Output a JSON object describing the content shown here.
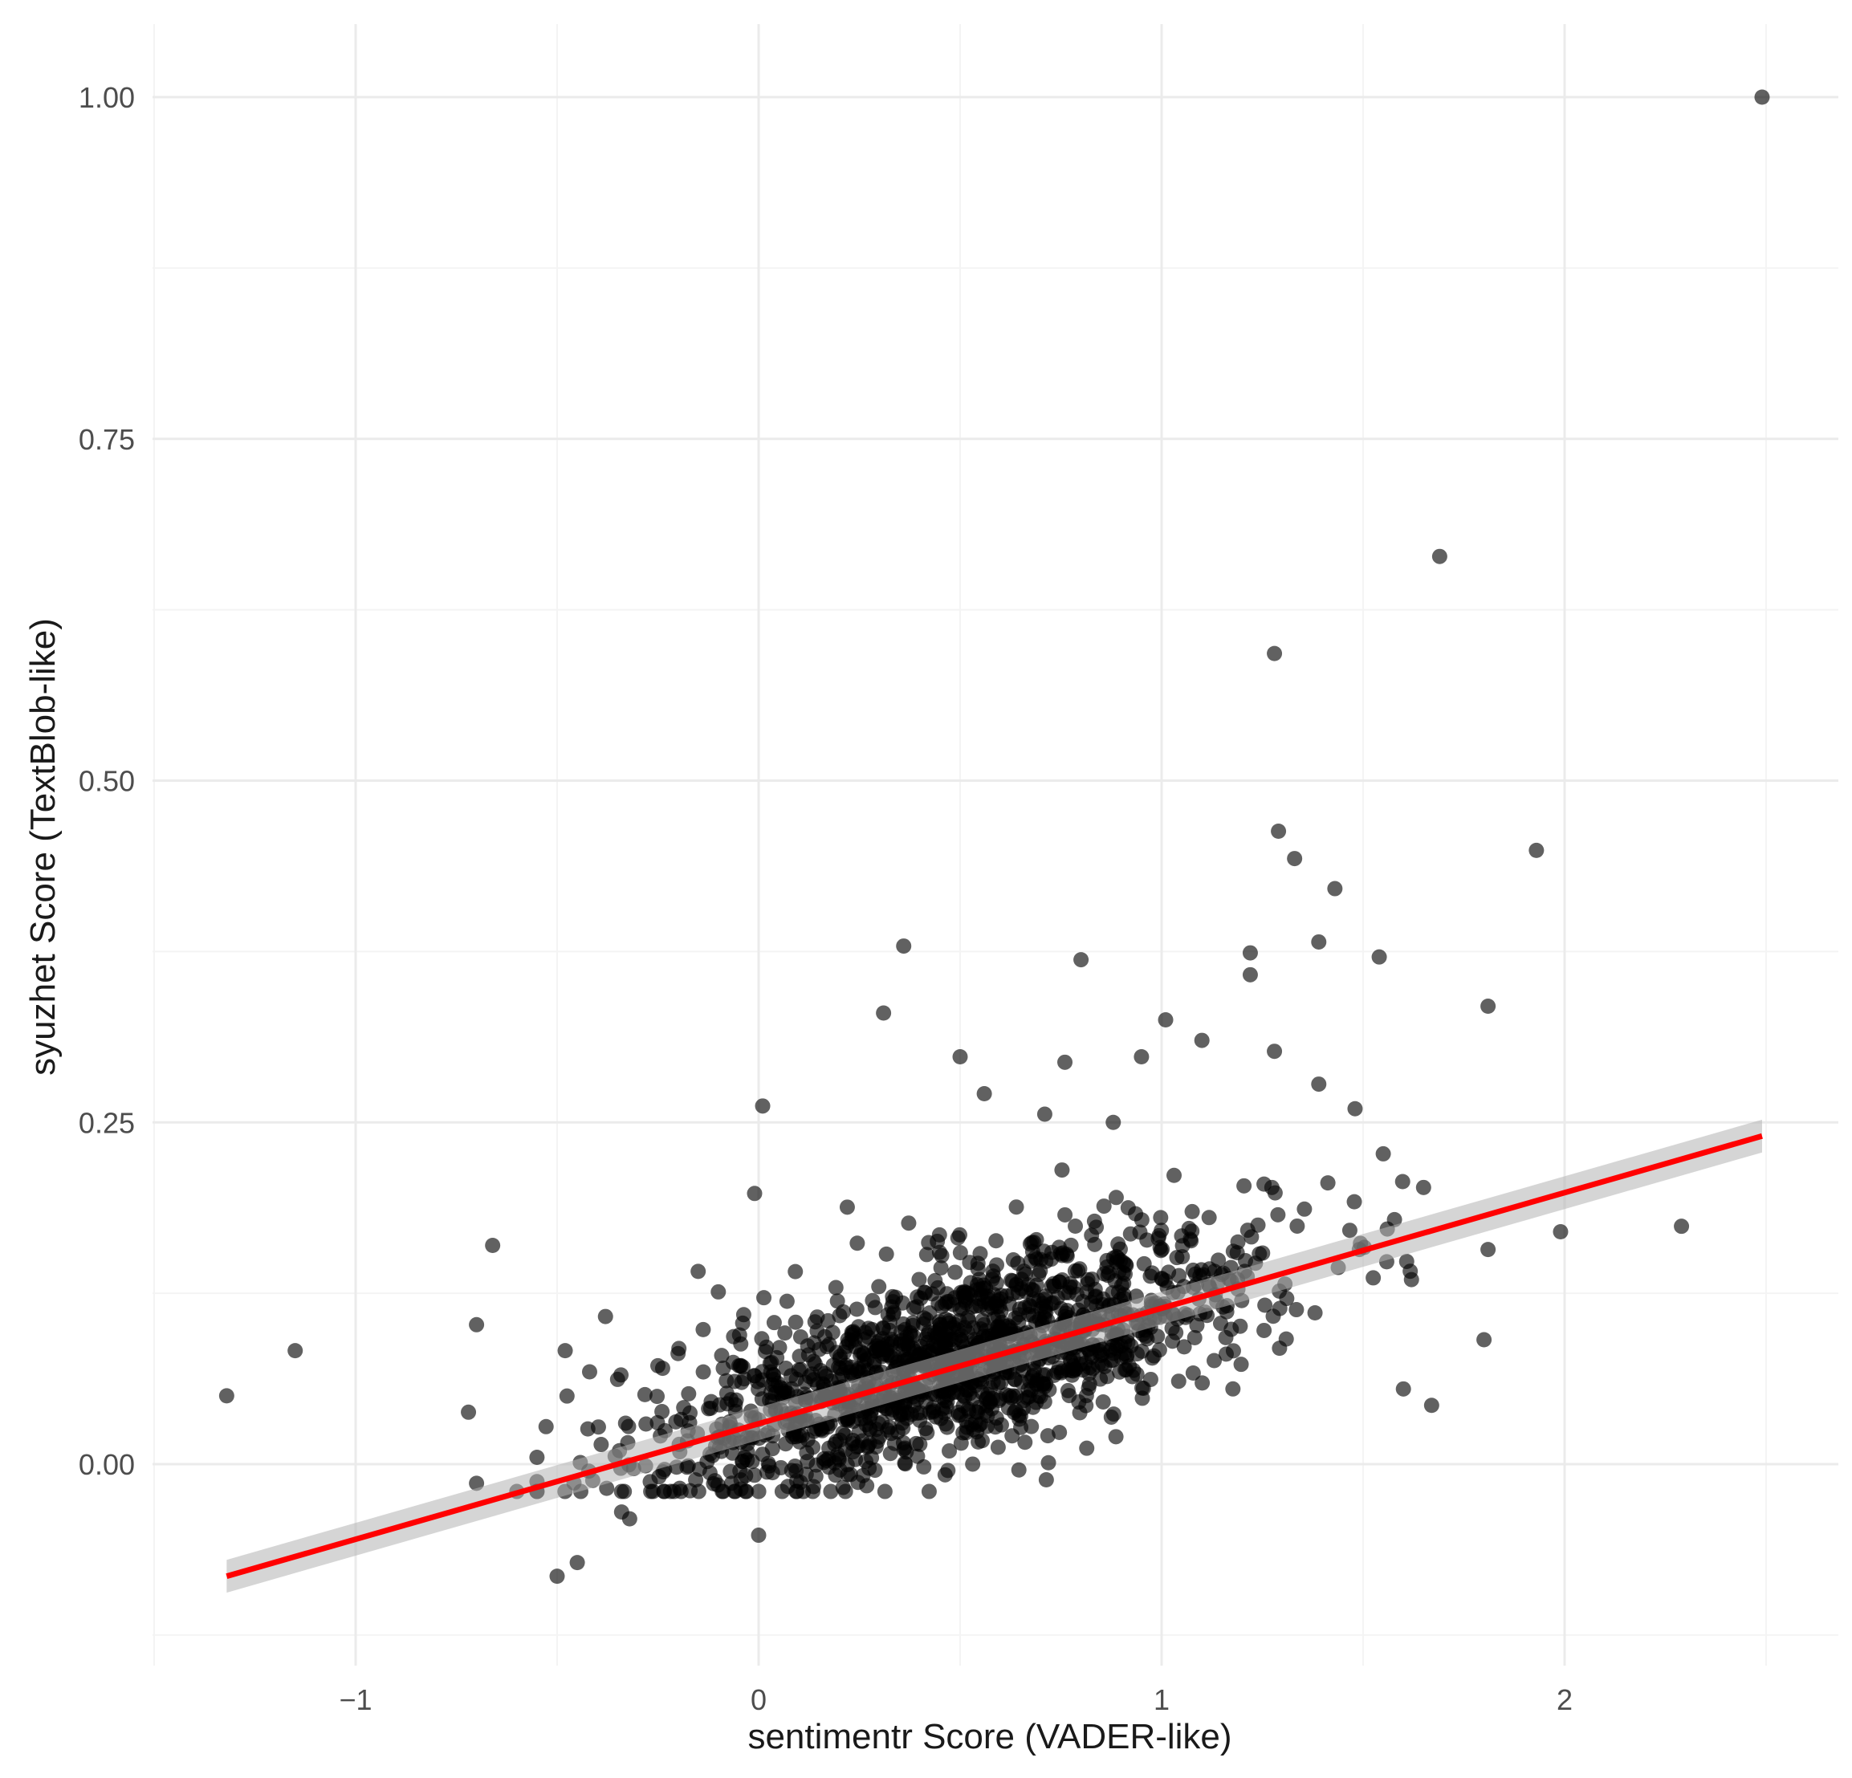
{
  "chart_data": {
    "type": "scatter",
    "xlabel": "sentimentr Score (VADER-like)",
    "ylabel": "syuzhet Score (TextBlob-like)",
    "xlim": [
      -1.5,
      2.7
    ],
    "ylim": [
      -0.13,
      1.05
    ],
    "x_ticks": [
      -1,
      0,
      1,
      2
    ],
    "x_tick_labels": [
      "−1",
      "0",
      "1",
      "2"
    ],
    "y_ticks": [
      0.0,
      0.25,
      0.5,
      0.75,
      1.0
    ],
    "y_tick_labels": [
      "0.00",
      "0.25",
      "0.50",
      "0.75",
      "1.00"
    ],
    "grid": true,
    "point_color": "#000000",
    "fit_color": "#ff0000",
    "band_color": "#b3b3b3",
    "fit_line": {
      "method": "linear regression",
      "x": [
        -1.32,
        2.49
      ],
      "y": [
        -0.082,
        0.24
      ],
      "band_halfwidth": [
        0.012,
        0.012
      ]
    },
    "cluster": {
      "n": 1500,
      "x_mean": 0.5,
      "x_sd": 0.38,
      "intercept": 0.035,
      "slope": 0.085,
      "resid_sd": 0.035
    },
    "points": [
      {
        "x": 2.49,
        "y": 1.0
      },
      {
        "x": 1.69,
        "y": 0.664
      },
      {
        "x": 1.28,
        "y": 0.593
      },
      {
        "x": 1.29,
        "y": 0.463
      },
      {
        "x": 1.33,
        "y": 0.443
      },
      {
        "x": 1.43,
        "y": 0.421
      },
      {
        "x": 1.93,
        "y": 0.449
      },
      {
        "x": 0.36,
        "y": 0.379
      },
      {
        "x": 0.8,
        "y": 0.369
      },
      {
        "x": 1.22,
        "y": 0.374
      },
      {
        "x": 1.22,
        "y": 0.358
      },
      {
        "x": 1.39,
        "y": 0.382
      },
      {
        "x": 1.54,
        "y": 0.371
      },
      {
        "x": 1.81,
        "y": 0.335
      },
      {
        "x": 0.31,
        "y": 0.33
      },
      {
        "x": 1.01,
        "y": 0.325
      },
      {
        "x": 0.5,
        "y": 0.298
      },
      {
        "x": 0.76,
        "y": 0.294
      },
      {
        "x": 0.95,
        "y": 0.298
      },
      {
        "x": 1.1,
        "y": 0.31
      },
      {
        "x": 1.28,
        "y": 0.302
      },
      {
        "x": 0.01,
        "y": 0.262
      },
      {
        "x": 0.56,
        "y": 0.271
      },
      {
        "x": 0.71,
        "y": 0.256
      },
      {
        "x": 0.88,
        "y": 0.25
      },
      {
        "x": 1.39,
        "y": 0.278
      },
      {
        "x": 1.48,
        "y": 0.26
      },
      {
        "x": 1.55,
        "y": 0.227
      },
      {
        "x": -0.01,
        "y": 0.198
      },
      {
        "x": 0.22,
        "y": 0.188
      },
      {
        "x": 1.99,
        "y": 0.17
      },
      {
        "x": 2.29,
        "y": 0.174
      },
      {
        "x": 1.81,
        "y": 0.157
      },
      {
        "x": -0.66,
        "y": 0.16
      },
      {
        "x": -0.7,
        "y": 0.102
      },
      {
        "x": -1.15,
        "y": 0.083
      },
      {
        "x": -1.32,
        "y": 0.05
      },
      {
        "x": -0.72,
        "y": 0.038
      },
      {
        "x": -0.7,
        "y": -0.014
      },
      {
        "x": -0.5,
        "y": -0.082
      },
      {
        "x": -0.45,
        "y": -0.072
      },
      {
        "x": 0.0,
        "y": -0.052
      },
      {
        "x": -0.48,
        "y": 0.083
      },
      {
        "x": -0.38,
        "y": 0.108
      },
      {
        "x": -0.15,
        "y": 0.141
      },
      {
        "x": -0.1,
        "y": 0.126
      },
      {
        "x": 1.8,
        "y": 0.091
      },
      {
        "x": 1.67,
        "y": 0.043
      },
      {
        "x": 1.62,
        "y": 0.135
      },
      {
        "x": 1.6,
        "y": 0.055
      },
      {
        "x": 1.56,
        "y": 0.172
      },
      {
        "x": -0.35,
        "y": 0.062
      },
      {
        "x": -0.55,
        "y": 0.005
      },
      {
        "x": -0.6,
        "y": -0.02
      },
      {
        "x": -0.34,
        "y": -0.035
      },
      {
        "x": -0.32,
        "y": -0.04
      },
      {
        "x": -0.25,
        "y": 0.072
      }
    ]
  }
}
